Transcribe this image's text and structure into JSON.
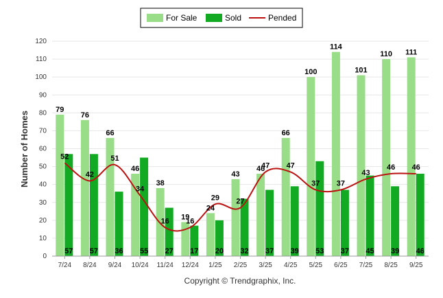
{
  "chart_data": {
    "type": "bar",
    "ylabel": "Number of Homes",
    "ylim": [
      0,
      120
    ],
    "yticks": [
      0,
      10,
      20,
      30,
      40,
      50,
      60,
      70,
      80,
      90,
      100,
      110,
      120
    ],
    "grid": true,
    "legend_position": "top",
    "categories": [
      "7/24",
      "8/24",
      "9/24",
      "10/24",
      "11/24",
      "12/24",
      "1/25",
      "2/25",
      "3/25",
      "4/25",
      "5/25",
      "6/25",
      "7/25",
      "8/25",
      "9/25"
    ],
    "series": [
      {
        "name": "For Sale",
        "type": "bar",
        "color": "#99dd88",
        "values": [
          79,
          76,
          66,
          46,
          38,
          19,
          24,
          43,
          46,
          66,
          100,
          114,
          101,
          110,
          111
        ]
      },
      {
        "name": "Sold",
        "type": "bar",
        "color": "#11aa22",
        "values": [
          57,
          57,
          36,
          55,
          27,
          17,
          20,
          32,
          37,
          39,
          53,
          37,
          45,
          39,
          46
        ]
      },
      {
        "name": "Pended",
        "type": "line",
        "color": "#bb1111",
        "values": [
          52,
          42,
          51,
          34,
          16,
          16,
          29,
          27,
          47,
          47,
          37,
          37,
          43,
          46,
          46
        ]
      }
    ]
  },
  "footer": {
    "credit": "Copyright © Trendgraphix, Inc."
  }
}
